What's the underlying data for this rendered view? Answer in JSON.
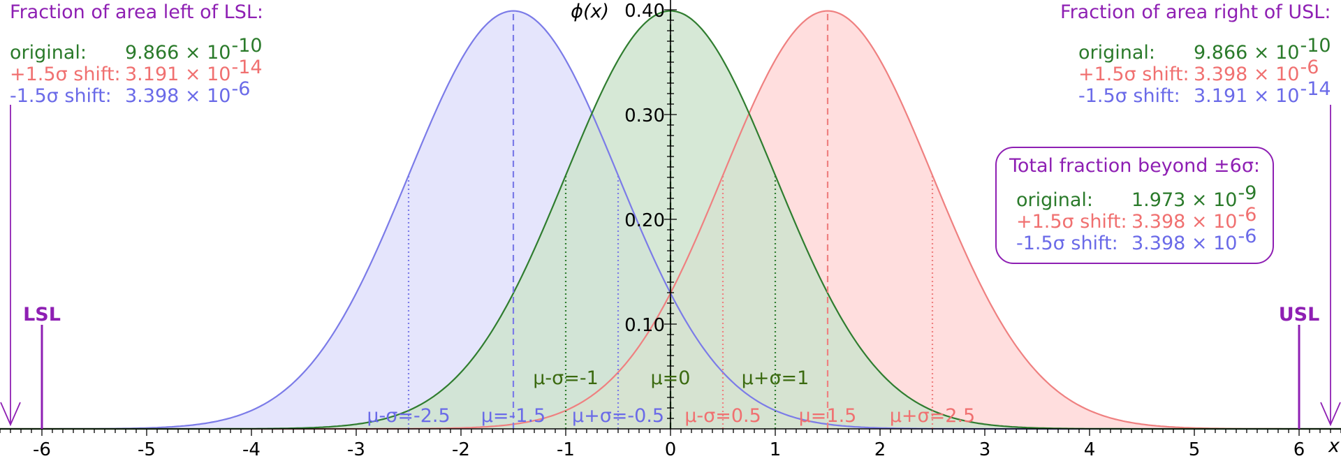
{
  "chart_data": {
    "type": "line",
    "title": "",
    "xlabel": "x",
    "ylabel": "ϕ(x)",
    "xlim": [
      -6.4,
      6.4
    ],
    "ylim": [
      0,
      0.4
    ],
    "x_ticks": [
      "-6",
      "-5",
      "-4",
      "-3",
      "-2",
      "-1",
      "0",
      "1",
      "2",
      "3",
      "4",
      "5",
      "6"
    ],
    "y_ticks": [
      "0.10",
      "0.20",
      "0.30",
      "0.40"
    ],
    "series": [
      {
        "name": "original",
        "mean": 0,
        "sd": 1,
        "color": "#2f7d2f",
        "fill": "#cfe4cf",
        "labels": {
          "minus": "μ-σ=-1",
          "mean": "μ=0",
          "plus": "μ+σ=1"
        },
        "label_color": "#3b6a10"
      },
      {
        "name": "+1.5σ shift",
        "mean": 1.5,
        "sd": 1,
        "color": "#ef8080",
        "fill": "#ffd6d6",
        "labels": {
          "minus": "μ-σ=0.5",
          "mean": "μ=1.5",
          "plus": "μ+σ=2.5"
        },
        "label_color": "#f07070"
      },
      {
        "name": "-1.5σ shift",
        "mean": -1.5,
        "sd": 1,
        "color": "#7b7be8",
        "fill": "#dedefb",
        "labels": {
          "minus": "μ-σ=-2.5",
          "mean": "μ=-1.5",
          "plus": "μ+σ=-0.5"
        },
        "label_color": "#6a6ae8"
      }
    ],
    "limits": [
      {
        "label": "LSL",
        "x": -6
      },
      {
        "label": "USL",
        "x": 6
      }
    ],
    "limit_color": "#8e1fb3"
  },
  "left_panel": {
    "title": "Fraction of area left of LSL:",
    "rows": [
      {
        "label": "original:",
        "mantissa": "9.866 × 10",
        "exp": "-10"
      },
      {
        "label": "+1.5σ shift:",
        "mantissa": "3.191 × 10",
        "exp": "-14"
      },
      {
        "label": "-1.5σ shift:",
        "mantissa": "3.398 × 10",
        "exp": "-6"
      }
    ]
  },
  "right_panel": {
    "title": "Fraction of area right of USL:",
    "rows": [
      {
        "label": "original:",
        "mantissa": "9.866 × 10",
        "exp": "-10"
      },
      {
        "label": "+1.5σ shift:",
        "mantissa": "3.398 × 10",
        "exp": "-6"
      },
      {
        "label": "-1.5σ shift:",
        "mantissa": "3.191 × 10",
        "exp": "-14"
      }
    ]
  },
  "total_box": {
    "title": "Total fraction beyond ±6σ:",
    "rows": [
      {
        "label": "original:",
        "mantissa": "1.973 × 10",
        "exp": "-9"
      },
      {
        "label": "+1.5σ shift:",
        "mantissa": "3.398 × 10",
        "exp": "-6"
      },
      {
        "label": "-1.5σ shift:",
        "mantissa": "3.398 × 10",
        "exp": "-6"
      }
    ]
  }
}
